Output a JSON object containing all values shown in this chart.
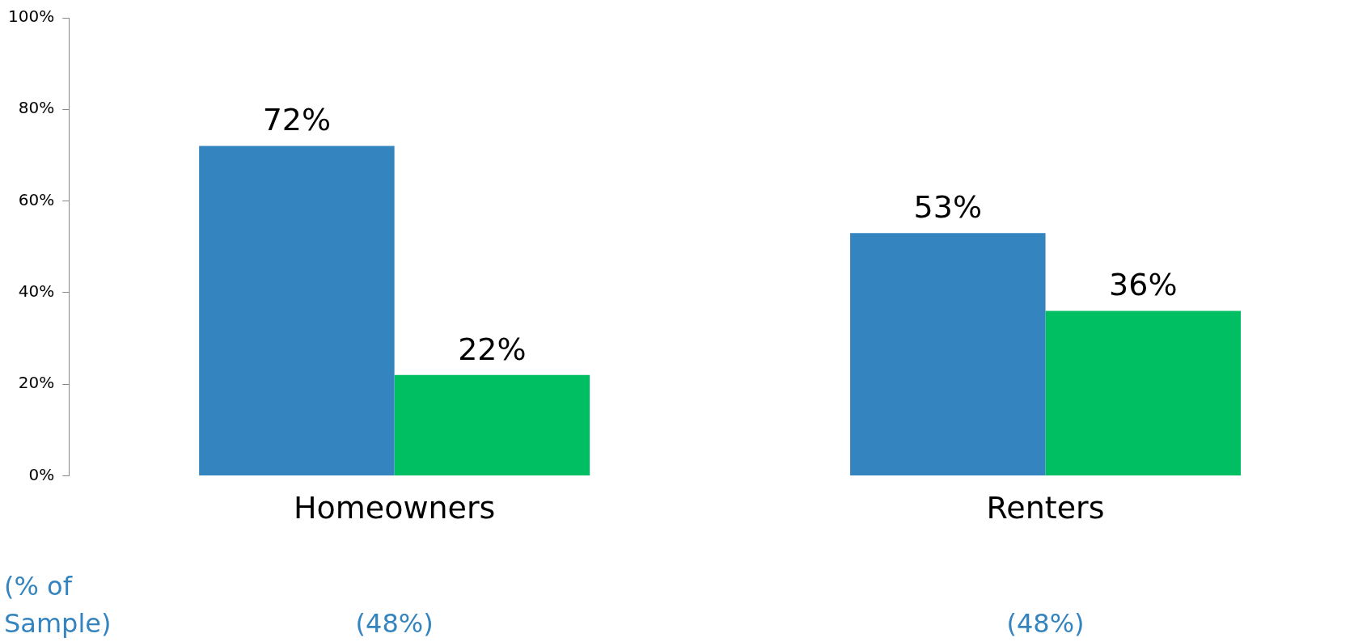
{
  "chart_data": {
    "type": "bar",
    "categories": [
      "Homeowners",
      "Renters"
    ],
    "series": [
      {
        "color": "#3384bf",
        "values": [
          72,
          53
        ],
        "value_labels": [
          "72%",
          "53%"
        ]
      },
      {
        "color": "#00bf63",
        "values": [
          22,
          36
        ],
        "value_labels": [
          "22%",
          "36%"
        ]
      }
    ],
    "ylim": [
      0,
      100
    ],
    "yticks": [
      {
        "value": 0,
        "label": "0%"
      },
      {
        "value": 20,
        "label": "20%"
      },
      {
        "value": 40,
        "label": "40%"
      },
      {
        "value": 60,
        "label": "60%"
      },
      {
        "value": 80,
        "label": "80%"
      },
      {
        "value": 100,
        "label": "100%"
      }
    ],
    "grid": false,
    "legend": false,
    "annotations": [
      "(% of Sample)",
      "(48%)",
      "(48%)"
    ]
  }
}
